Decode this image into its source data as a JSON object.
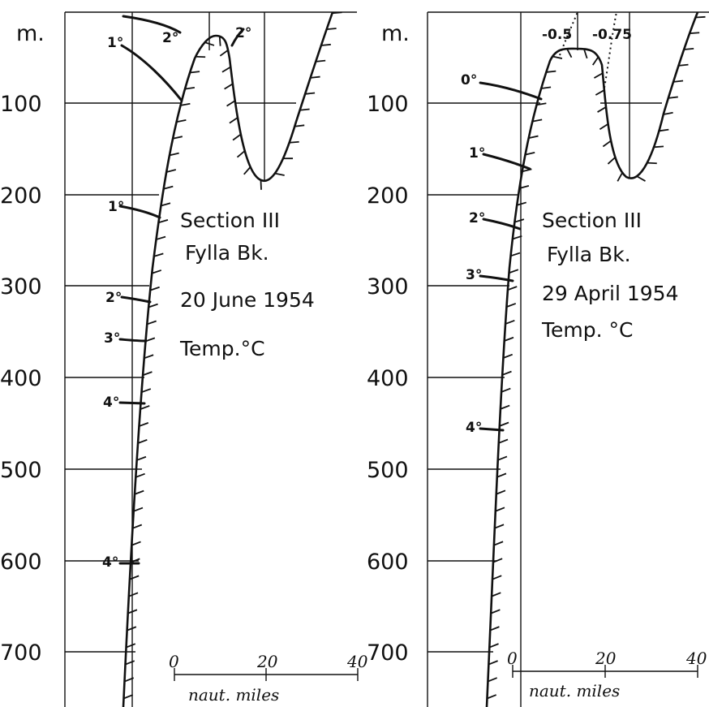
{
  "panels": [
    {
      "unit_label": "m.",
      "depth_ticks": [
        "100",
        "200",
        "300",
        "400",
        "500",
        "600",
        "700"
      ],
      "title_lines": [
        "Section III",
        "Fylla Bk.",
        "20 June 1954",
        "Temp.°C"
      ],
      "isotherm_labels": [
        "2°",
        "2°",
        "1°",
        "1°",
        "2°",
        "3°",
        "4°",
        "4°"
      ],
      "scale": {
        "ticks": [
          "0",
          "20",
          "40"
        ],
        "label": "naut. miles"
      }
    },
    {
      "unit_label": "m.",
      "depth_ticks": [
        "100",
        "200",
        "300",
        "400",
        "500",
        "600",
        "700"
      ],
      "title_lines": [
        "Section III",
        "Fylla Bk.",
        "29 April 1954",
        "Temp. °C"
      ],
      "isotherm_labels": [
        "-0.5",
        "-0.75",
        "0°",
        "1°",
        "2°",
        "3°",
        "4°"
      ],
      "scale": {
        "ticks": [
          "0",
          "20",
          "40"
        ],
        "label": "naut. miles"
      }
    }
  ]
}
